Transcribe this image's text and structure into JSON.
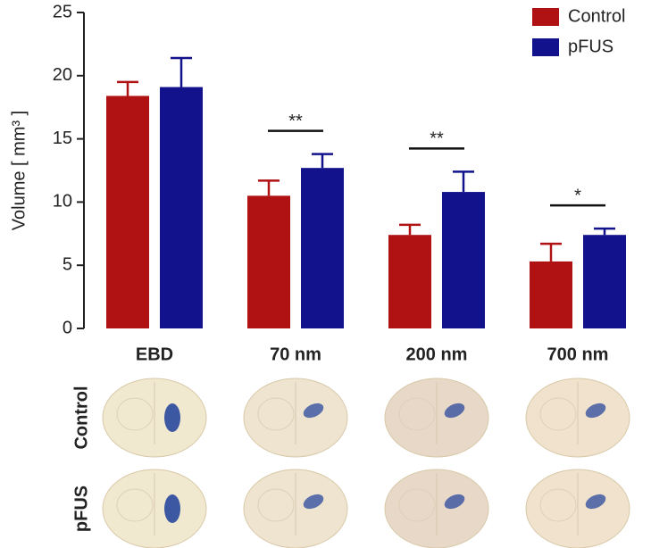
{
  "chart_data": {
    "type": "bar",
    "ylabel": "Volume [ mm³ ]",
    "categories": [
      "EBD",
      "70 nm",
      "200 nm",
      "700 nm"
    ],
    "series": [
      {
        "name": "Control",
        "color": "#b01214",
        "values": [
          18.4,
          10.5,
          7.4,
          5.3
        ],
        "errors": [
          1.1,
          1.2,
          0.8,
          1.4
        ]
      },
      {
        "name": "pFUS",
        "color": "#12128c",
        "values": [
          19.1,
          12.7,
          10.8,
          7.4
        ],
        "errors": [
          2.3,
          1.1,
          1.6,
          0.5
        ]
      }
    ],
    "ylim": [
      0,
      25
    ],
    "yticks": [
      0,
      5,
      10,
      15,
      20,
      25
    ],
    "annotations": [
      {
        "category": "70 nm",
        "label": "**"
      },
      {
        "category": "200 nm",
        "label": "**"
      },
      {
        "category": "700 nm",
        "label": "*"
      }
    ],
    "image_rows": [
      "Control",
      "pFUS"
    ]
  }
}
